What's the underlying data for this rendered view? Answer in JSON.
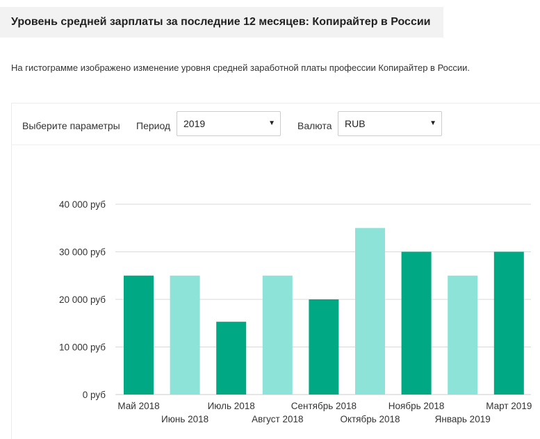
{
  "header": {
    "title": "Уровень средней зарплаты за последние 12 месяцев: Копирайтер в России"
  },
  "description": "На гистограмме изображено изменение уровня средней заработной платы профессии Копирайтер в России.",
  "filters": {
    "label": "Выберите параметры",
    "period_label": "Период",
    "period_value": "2019",
    "currency_label": "Валюта",
    "currency_value": "RUB"
  },
  "colors": {
    "dark": "#00a884",
    "light": "#8ee3d8",
    "grid": "#d9d9d9"
  },
  "chart_data": {
    "type": "bar",
    "title": "",
    "xlabel": "",
    "ylabel": "",
    "ylim": [
      0,
      40000
    ],
    "y_ticks": [
      {
        "value": 0,
        "label": "0 руб"
      },
      {
        "value": 10000,
        "label": "10 000 руб"
      },
      {
        "value": 20000,
        "label": "20 000 руб"
      },
      {
        "value": 30000,
        "label": "30 000 руб"
      },
      {
        "value": 40000,
        "label": "40 000 руб"
      }
    ],
    "categories": [
      "Май 2018",
      "Июнь 2018",
      "Июль 2018",
      "Август 2018",
      "Сентябрь 2018",
      "Октябрь 2018",
      "Ноябрь 2018",
      "Январь 2019",
      "Март 2019"
    ],
    "values": [
      25000,
      25000,
      15300,
      25000,
      20000,
      35000,
      30000,
      25000,
      30000
    ],
    "shades": [
      "dark",
      "light",
      "dark",
      "light",
      "dark",
      "light",
      "dark",
      "light",
      "dark"
    ]
  }
}
